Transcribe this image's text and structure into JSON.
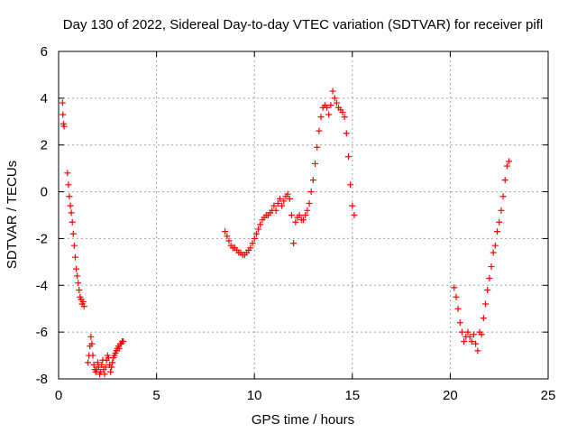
{
  "chart_data": {
    "type": "scatter",
    "title": "Day 130 of 2022, Sidereal Day-to-day VTEC variation (SDTVAR) for receiver pifl",
    "xlabel": "GPS time / hours",
    "ylabel": "SDTVAR / TECUs",
    "xlim": [
      0,
      25
    ],
    "ylim": [
      -8,
      6
    ],
    "xticks": [
      0,
      5,
      10,
      15,
      20,
      25
    ],
    "yticks": [
      -8,
      -6,
      -4,
      -2,
      0,
      2,
      4,
      6
    ],
    "xtick_labels": [
      "0",
      "5",
      "10",
      "15",
      "20",
      "25"
    ],
    "ytick_labels": [
      "-8",
      "-6",
      "-4",
      "-2",
      "0",
      "2",
      "4",
      "6"
    ],
    "grid": true,
    "marker": "+",
    "color": "#ff0000",
    "series": [
      {
        "name": "SDTVAR",
        "x": [
          0.2,
          0.22,
          0.25,
          0.28,
          0.45,
          0.5,
          0.55,
          0.6,
          0.65,
          0.7,
          0.75,
          0.8,
          0.85,
          0.9,
          0.95,
          1.0,
          1.05,
          1.1,
          1.15,
          1.2,
          1.25,
          1.3,
          1.5,
          1.55,
          1.6,
          1.65,
          1.7,
          1.75,
          1.8,
          1.85,
          1.9,
          1.95,
          2.0,
          2.05,
          2.1,
          2.15,
          2.2,
          2.25,
          2.3,
          2.35,
          2.4,
          2.45,
          2.5,
          2.55,
          2.6,
          2.65,
          2.7,
          2.75,
          2.8,
          2.85,
          2.9,
          2.95,
          3.0,
          3.05,
          3.1,
          3.15,
          3.2,
          3.25,
          3.3,
          8.5,
          8.6,
          8.7,
          8.8,
          8.9,
          9.0,
          9.1,
          9.2,
          9.3,
          9.4,
          9.5,
          9.6,
          9.7,
          9.8,
          9.9,
          10.0,
          10.1,
          10.2,
          10.3,
          10.4,
          10.5,
          10.6,
          10.7,
          10.8,
          10.9,
          11.0,
          11.1,
          11.2,
          11.3,
          11.4,
          11.5,
          11.6,
          11.7,
          11.8,
          11.9,
          12.0,
          12.1,
          12.2,
          12.3,
          12.4,
          12.5,
          12.6,
          12.7,
          12.8,
          12.9,
          13.0,
          13.1,
          13.2,
          13.3,
          13.4,
          13.5,
          13.6,
          13.7,
          13.8,
          13.9,
          14.0,
          14.1,
          14.2,
          14.3,
          14.4,
          14.5,
          14.6,
          14.7,
          14.8,
          14.9,
          15.0,
          15.1,
          20.2,
          20.3,
          20.4,
          20.5,
          20.6,
          20.7,
          20.8,
          20.9,
          21.0,
          21.1,
          21.2,
          21.3,
          21.4,
          21.5,
          21.6,
          21.7,
          21.8,
          21.9,
          22.0,
          22.1,
          22.2,
          22.3,
          22.4,
          22.5,
          22.6,
          22.7,
          22.8,
          22.9,
          23.0
        ],
        "y": [
          3.8,
          3.3,
          2.9,
          2.8,
          0.8,
          0.3,
          -0.2,
          -0.6,
          -0.9,
          -1.3,
          -1.8,
          -2.3,
          -2.8,
          -3.3,
          -3.6,
          -3.9,
          -4.2,
          -4.5,
          -4.6,
          -4.8,
          -4.7,
          -4.9,
          -7.3,
          -7.0,
          -6.6,
          -6.2,
          -6.5,
          -7.0,
          -7.4,
          -7.6,
          -7.7,
          -7.6,
          -7.3,
          -7.5,
          -7.8,
          -7.7,
          -7.4,
          -7.2,
          -7.6,
          -7.8,
          -7.5,
          -7.2,
          -7.0,
          -7.1,
          -7.4,
          -7.7,
          -7.5,
          -7.3,
          -7.1,
          -7.0,
          -6.9,
          -6.8,
          -6.7,
          -6.6,
          -6.7,
          -6.5,
          -6.5,
          -6.4,
          -6.4,
          -1.7,
          -1.9,
          -2.1,
          -2.3,
          -2.4,
          -2.4,
          -2.5,
          -2.6,
          -2.6,
          -2.7,
          -2.7,
          -2.6,
          -2.5,
          -2.4,
          -2.2,
          -2.0,
          -1.8,
          -1.6,
          -1.4,
          -1.2,
          -1.1,
          -1.0,
          -1.0,
          -0.9,
          -0.8,
          -0.6,
          -0.8,
          -0.5,
          -0.3,
          -0.6,
          -0.4,
          -0.2,
          -0.1,
          -0.3,
          -1.0,
          -2.2,
          -1.3,
          -1.1,
          -1.0,
          -1.2,
          -1.2,
          -1.0,
          -0.8,
          -0.5,
          0.0,
          0.5,
          1.2,
          1.9,
          2.6,
          3.2,
          3.6,
          3.7,
          3.6,
          3.3,
          3.7,
          4.3,
          4.0,
          3.8,
          3.6,
          3.5,
          3.4,
          3.2,
          2.5,
          1.5,
          0.3,
          -0.6,
          -1.0,
          -4.1,
          -4.5,
          -5.0,
          -5.6,
          -6.0,
          -6.4,
          -6.2,
          -6.0,
          -6.2,
          -6.4,
          -6.1,
          -6.5,
          -6.8,
          -6.0,
          -6.1,
          -5.4,
          -4.8,
          -4.2,
          -3.7,
          -3.2,
          -2.6,
          -2.3,
          -1.7,
          -1.3,
          -0.8,
          -0.2,
          0.5,
          1.1,
          1.3
        ]
      }
    ]
  }
}
